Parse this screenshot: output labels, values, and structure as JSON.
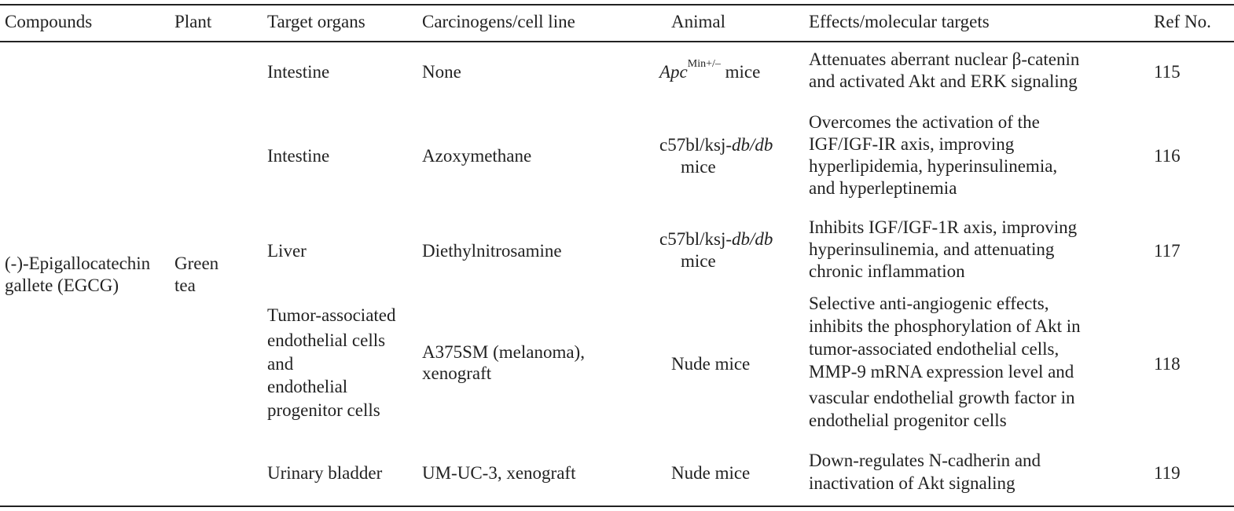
{
  "headers": {
    "compounds": "Compounds",
    "plant": "Plant",
    "target_organs": "Target organs",
    "carcinogens": "Carcinogens/cell line",
    "animal": "Animal",
    "effects": "Effects/molecular targets",
    "ref": "Ref No."
  },
  "compound": {
    "line1": "(-)-Epigallocatechin",
    "line2": "gallete (EGCG)"
  },
  "plant": {
    "line1": "Green",
    "line2": "tea"
  },
  "rows": [
    {
      "organ": [
        "Intestine"
      ],
      "carcinogen": [
        "None"
      ],
      "animal": {
        "italic": "Apc",
        "sup": "Min+/–",
        "rest": " mice"
      },
      "effects": [
        "Attenuates aberrant nuclear β-catenin",
        "and activated Akt and ERK signaling"
      ],
      "ref": "115"
    },
    {
      "organ": [
        "Intestine"
      ],
      "carcinogen": [
        "Azoxymethane"
      ],
      "animal": {
        "prefix": "c57bl/ksj-",
        "italic": "db/db",
        "line2": "mice"
      },
      "effects": [
        "Overcomes the activation of the",
        "IGF/IGF-IR axis, improving",
        "hyperlipidemia, hyperinsulinemia,",
        "and hyperleptinemia"
      ],
      "ref": "116"
    },
    {
      "organ": [
        "Liver"
      ],
      "carcinogen": [
        "Diethylnitrosamine"
      ],
      "animal": {
        "prefix": "c57bl/ksj-",
        "italic": "db/db",
        "line2": "mice"
      },
      "effects": [
        "Inhibits IGF/IGF-1R axis, improving",
        "hyperinsulinemia, and attenuating",
        "chronic inflammation"
      ],
      "ref": "117"
    },
    {
      "organ": [
        "Tumor-associated",
        "endothelial cells",
        "and",
        "endothelial",
        "progenitor cells"
      ],
      "carcinogen": [
        "A375SM (melanoma),",
        "xenograft"
      ],
      "animal": {
        "text": "Nude mice"
      },
      "effects": [
        "Selective anti-angiogenic effects,",
        "inhibits the phosphorylation of Akt in",
        "tumor-associated endothelial cells,",
        "MMP-9 mRNA expression level and",
        "vascular endothelial growth factor in",
        "endothelial progenitor cells"
      ],
      "ref": "118"
    },
    {
      "organ": [
        "Urinary bladder"
      ],
      "carcinogen": [
        "UM-UC-3, xenograft"
      ],
      "animal": {
        "text": "Nude mice"
      },
      "effects": [
        "Down-regulates N-cadherin and",
        "inactivation of Akt signaling"
      ],
      "ref": "119"
    }
  ]
}
